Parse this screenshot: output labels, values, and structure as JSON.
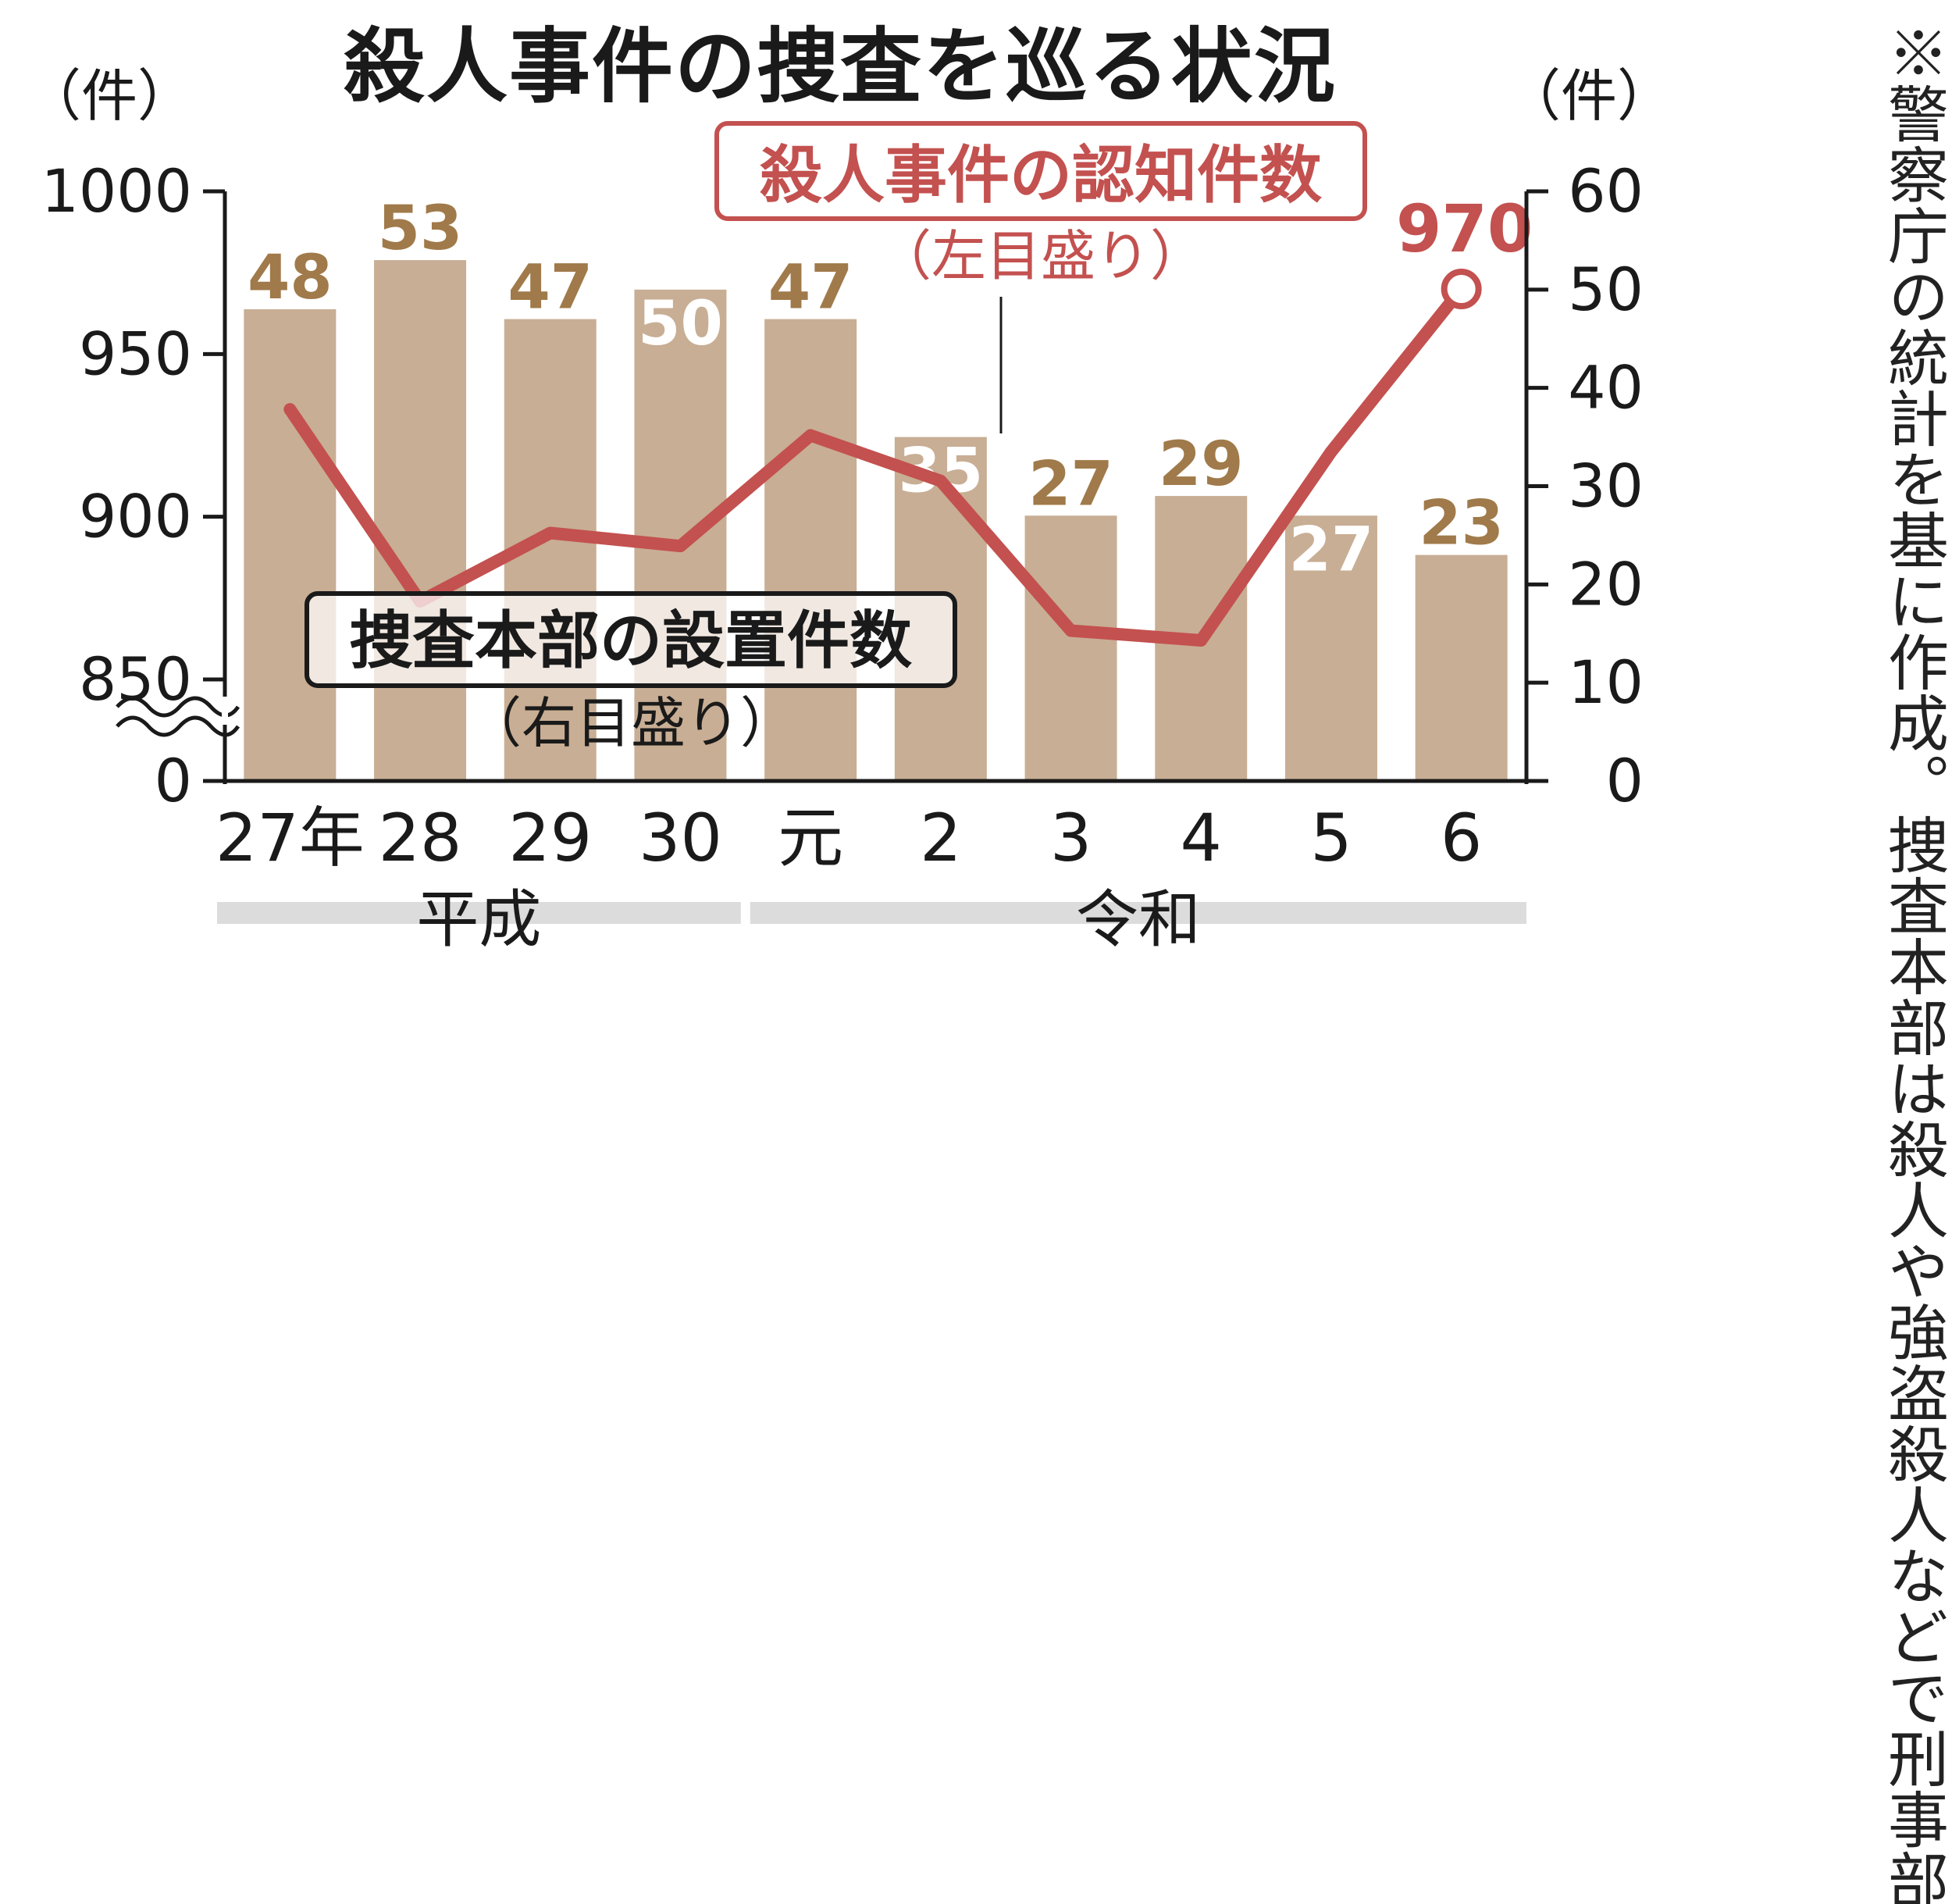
{
  "chart_data": {
    "type": "bar",
    "title": "殺人事件の捜査を巡る状況",
    "categories": [
      "27年",
      "28",
      "29",
      "30",
      "元",
      "2",
      "3",
      "4",
      "5",
      "6"
    ],
    "eras": [
      {
        "name": "平成",
        "categories": [
          "27年",
          "28",
          "29",
          "30"
        ]
      },
      {
        "name": "令和",
        "categories": [
          "元",
          "2",
          "3",
          "4",
          "5",
          "6"
        ]
      }
    ],
    "left_axis": {
      "unit_label": "（件）",
      "ticks": [
        "0",
        "850",
        "900",
        "950",
        "1000"
      ],
      "broken": true,
      "ylim": [
        850,
        1000
      ]
    },
    "right_axis": {
      "unit_label": "（件）",
      "ticks": [
        "0",
        "10",
        "20",
        "30",
        "40",
        "50",
        "60"
      ],
      "ylim": [
        0,
        60
      ]
    },
    "series": [
      {
        "name": "捜査本部の設置件数",
        "scale_note": "（右目盛り）",
        "type": "bar",
        "axis": "right",
        "values": [
          48,
          53,
          47,
          50,
          47,
          35,
          27,
          29,
          27,
          23
        ],
        "color": "#c8ae94"
      },
      {
        "name": "殺人事件の認知件数",
        "scale_note": "（左目盛り）",
        "type": "line",
        "axis": "left",
        "values": [
          933,
          874,
          895,
          891,
          925,
          911,
          865,
          null,
          null,
          970
        ],
        "color": "#c3514f"
      }
    ],
    "data_labels": [
      {
        "value": "48",
        "style": "above"
      },
      {
        "value": "53",
        "style": "above"
      },
      {
        "value": "47",
        "style": "above"
      },
      {
        "value": "50",
        "style": "inside"
      },
      {
        "value": "47",
        "style": "above"
      },
      {
        "value": "35",
        "style": "inside"
      },
      {
        "value": "27",
        "style": "above"
      },
      {
        "value": "29",
        "style": "above"
      },
      {
        "value": "27",
        "style": "inside"
      },
      {
        "value": "23",
        "style": "above"
      }
    ],
    "line_last_label": "970",
    "line_extra_values": [
      {
        "category": "4",
        "value": 862
      },
      {
        "category": "5",
        "value": 920
      }
    ],
    "colors": {
      "bar": "#c8ae94",
      "bar_label": "#a07a4a",
      "line": "#c3514f",
      "axis": "#1a1a1a",
      "era_band": "#dcdcdc"
    }
  },
  "note": "※警察庁の統計を基に作成。捜査本部は殺人や強盗殺人などで刑事部長を長として設置され、警察庁に報告のあったもの"
}
